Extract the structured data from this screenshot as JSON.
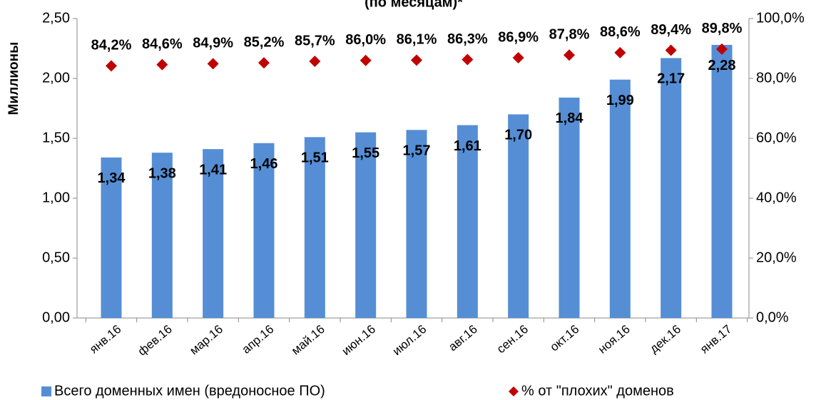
{
  "chart_data": {
    "type": "bar",
    "title": "(по месяцам)*",
    "ylabel": "Миллионы",
    "categories": [
      "янв.16",
      "фев.16",
      "мар.16",
      "апр.16",
      "май.16",
      "июн.16",
      "июл.16",
      "авг.16",
      "сен.16",
      "окт.16",
      "ноя.16",
      "дек.16",
      "янв.17"
    ],
    "series": [
      {
        "name": "Всего доменных имен (вредоносное ПО)",
        "type": "bar",
        "color": "#558ed5",
        "values": [
          1.34,
          1.38,
          1.41,
          1.46,
          1.51,
          1.55,
          1.57,
          1.61,
          1.7,
          1.84,
          1.99,
          2.17,
          2.28
        ],
        "value_labels": [
          "1,34",
          "1,38",
          "1,41",
          "1,46",
          "1,51",
          "1,55",
          "1,57",
          "1,61",
          "1,70",
          "1,84",
          "1,99",
          "2,17",
          "2,28"
        ]
      },
      {
        "name": "% от \"плохих\" доменов",
        "type": "scatter",
        "axis": "y2",
        "color": "#c00000",
        "values": [
          84.2,
          84.6,
          84.9,
          85.2,
          85.7,
          86.0,
          86.1,
          86.3,
          86.9,
          87.8,
          88.6,
          89.4,
          89.8
        ],
        "value_labels": [
          "84,2%",
          "84,6%",
          "84,9%",
          "85,2%",
          "85,7%",
          "86,0%",
          "86,1%",
          "86,3%",
          "86,9%",
          "87,8%",
          "88,6%",
          "89,4%",
          "89,8%"
        ]
      }
    ],
    "ylim": [
      0,
      2.5
    ],
    "yticks": [
      {
        "value": 0,
        "label": "0,00"
      },
      {
        "value": 0.5,
        "label": "0,50"
      },
      {
        "value": 1,
        "label": "1,00"
      },
      {
        "value": 1.5,
        "label": "1,50"
      },
      {
        "value": 2,
        "label": "2,00"
      },
      {
        "value": 2.5,
        "label": "2,50"
      }
    ],
    "y2lim": [
      0,
      100
    ],
    "y2ticks": [
      {
        "value": 0,
        "label": "0,0%"
      },
      {
        "value": 20,
        "label": "20,0%"
      },
      {
        "value": 40,
        "label": "40,0%"
      },
      {
        "value": 60,
        "label": "60,0%"
      },
      {
        "value": 80,
        "label": "80,0%"
      },
      {
        "value": 100,
        "label": "100,0%"
      }
    ],
    "legend": "bottom"
  }
}
